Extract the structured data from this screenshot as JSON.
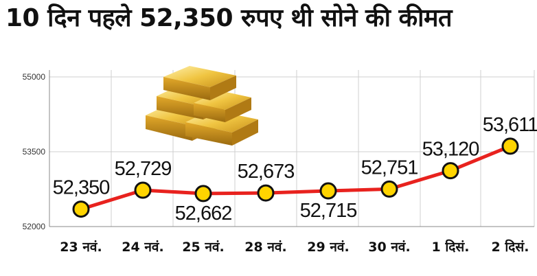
{
  "title": "10 दिन पहले 52,350 रुपए थी सोने की कीमत",
  "colors": {
    "line": "#e8221e",
    "marker_fill": "#ffd400",
    "marker_stroke": "#111111",
    "grid": "#cfcfcf",
    "gold": "#e7b53a"
  },
  "icons": {
    "illustration": "gold-bars-icon"
  },
  "chart_data": {
    "type": "line",
    "categories": [
      "23 नवं.",
      "24 नवं.",
      "25 नवं.",
      "28 नवं.",
      "29 नवं.",
      "30 नवं.",
      "1 दिसं.",
      "2 दिसं."
    ],
    "values": [
      52350,
      52729,
      52662,
      52673,
      52715,
      52751,
      53120,
      53611
    ],
    "data_labels": [
      "52,350",
      "52,729",
      "52,662",
      "52,673",
      "52,715",
      "52,751",
      "53,120",
      "53,611"
    ],
    "yticks": [
      52000,
      53500,
      55000
    ],
    "ytick_labels": [
      "52000",
      "53500",
      "55000"
    ],
    "ylim": [
      52000,
      55000
    ],
    "grid": true,
    "xlabel": "",
    "ylabel": ""
  }
}
